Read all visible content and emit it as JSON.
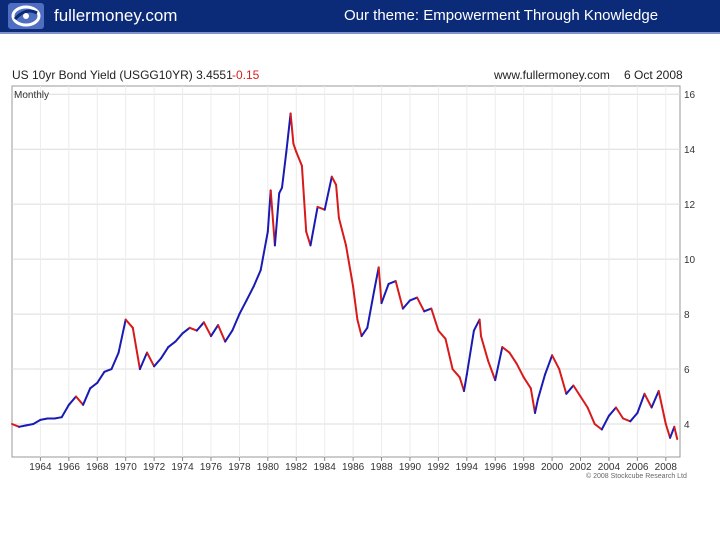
{
  "header": {
    "brand": "fullermoney.com",
    "theme": "Our theme: Empowerment Through Knowledge",
    "logo_icon": "swirl-logo-icon",
    "banner_color": "#0b2a78"
  },
  "chart_header": {
    "title": "US 10yr Bond Yield (USGG10YR) 3.4551",
    "change": "-0.15",
    "site": "www.fullermoney.com",
    "date": "6 Oct 2008",
    "frequency": "Monthly"
  },
  "footer": {
    "copyright": "© 2008 Stockcube Research Ltd"
  },
  "chart_data": {
    "type": "line",
    "title": "US 10yr Bond Yield (USGG10YR) 3.4551",
    "xlabel": "",
    "ylabel": "",
    "xlim": [
      1962,
      2009
    ],
    "ylim": [
      2.8,
      16.3
    ],
    "y_axis_position": "right",
    "grid": true,
    "legend": "none",
    "colors": {
      "up": "#1a1ab4",
      "down": "#d81a1a"
    },
    "x_ticks": [
      1964,
      1966,
      1968,
      1970,
      1972,
      1974,
      1976,
      1978,
      1980,
      1982,
      1984,
      1986,
      1988,
      1990,
      1992,
      1994,
      1996,
      1998,
      2000,
      2002,
      2004,
      2006,
      2008
    ],
    "x_tick_labels": [
      "1964",
      "1966",
      "1968",
      "1970",
      "1972",
      "1974",
      "1976",
      "1978",
      "1980",
      "1982",
      "1984",
      "1986",
      "1988",
      "1990",
      "1992",
      "1994",
      "1996",
      "1998",
      "2000",
      "2002",
      "2004",
      "2006",
      "2008"
    ],
    "y_ticks": [
      4,
      6,
      8,
      10,
      12,
      14,
      16
    ],
    "y_tick_labels": [
      "4",
      "6",
      "8",
      "10",
      "12",
      "14",
      "16"
    ],
    "series": [
      {
        "x": [
          1962.0,
          1962.5,
          1963.0,
          1963.5,
          1964.0,
          1964.5,
          1965.0,
          1965.5,
          1966.0,
          1966.5,
          1967.0,
          1967.5,
          1968.0,
          1968.5,
          1969.0,
          1969.5,
          1970.0,
          1970.5,
          1971.0,
          1971.5,
          1972.0,
          1972.5,
          1973.0,
          1973.5,
          1974.0,
          1974.5,
          1975.0,
          1975.5,
          1976.0,
          1976.5,
          1977.0,
          1977.5,
          1978.0,
          1978.5,
          1979.0,
          1979.5,
          1980.0,
          1980.2,
          1980.5,
          1980.8,
          1981.0,
          1981.3,
          1981.6,
          1981.8,
          1982.0,
          1982.4,
          1982.7,
          1983.0,
          1983.5,
          1984.0,
          1984.5,
          1984.8,
          1985.0,
          1985.5,
          1986.0,
          1986.3,
          1986.6,
          1987.0,
          1987.5,
          1987.8,
          1988.0,
          1988.5,
          1989.0,
          1989.5,
          1990.0,
          1990.5,
          1991.0,
          1991.5,
          1992.0,
          1992.5,
          1993.0,
          1993.5,
          1993.8,
          1994.0,
          1994.5,
          1994.9,
          1995.0,
          1995.5,
          1996.0,
          1996.5,
          1997.0,
          1997.5,
          1998.0,
          1998.5,
          1998.8,
          1999.0,
          1999.5,
          2000.0,
          2000.5,
          2001.0,
          2001.5,
          2002.0,
          2002.5,
          2003.0,
          2003.5,
          2004.0,
          2004.5,
          2005.0,
          2005.5,
          2006.0,
          2006.5,
          2007.0,
          2007.5,
          2008.0,
          2008.3,
          2008.6,
          2008.8
        ],
        "y": [
          4.0,
          3.9,
          3.95,
          4.0,
          4.15,
          4.2,
          4.2,
          4.25,
          4.7,
          5.0,
          4.7,
          5.3,
          5.5,
          5.9,
          6.0,
          6.6,
          7.8,
          7.5,
          6.0,
          6.6,
          6.1,
          6.4,
          6.8,
          7.0,
          7.3,
          7.5,
          7.4,
          7.7,
          7.2,
          7.6,
          7.0,
          7.4,
          8.0,
          8.5,
          9.0,
          9.6,
          11.0,
          12.5,
          10.5,
          12.4,
          12.6,
          13.9,
          15.3,
          14.2,
          13.9,
          13.4,
          11.0,
          10.5,
          11.9,
          11.8,
          13.0,
          12.7,
          11.5,
          10.5,
          9.0,
          7.8,
          7.2,
          7.5,
          8.9,
          9.7,
          8.4,
          9.1,
          9.2,
          8.2,
          8.5,
          8.6,
          8.1,
          8.2,
          7.4,
          7.1,
          6.0,
          5.7,
          5.2,
          5.8,
          7.4,
          7.8,
          7.2,
          6.3,
          5.6,
          6.8,
          6.6,
          6.2,
          5.7,
          5.3,
          4.4,
          4.9,
          5.8,
          6.5,
          6.0,
          5.1,
          5.4,
          5.0,
          4.6,
          4.0,
          3.8,
          4.3,
          4.6,
          4.2,
          4.1,
          4.4,
          5.1,
          4.6,
          5.2,
          4.0,
          3.5,
          3.9,
          3.4551
        ]
      }
    ]
  }
}
